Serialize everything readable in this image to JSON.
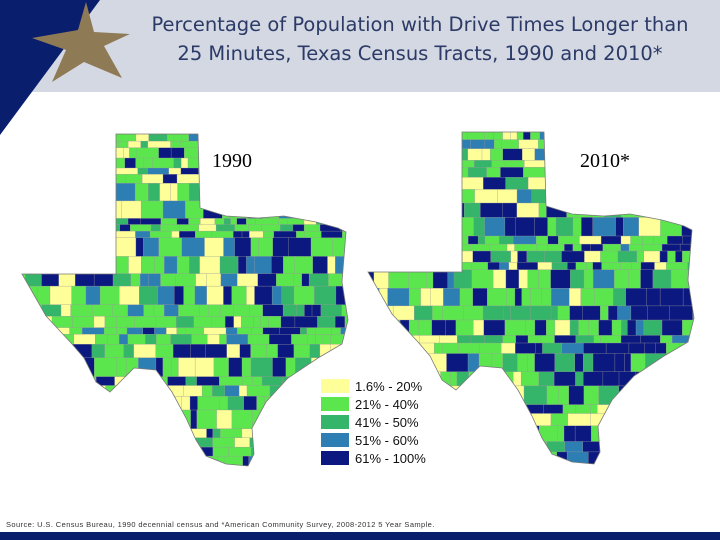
{
  "title": {
    "line1": "Percentage of Population with Drive Times Longer than",
    "line2": "25 Minutes, Texas Census Tracts, 1990 and 2010*"
  },
  "maps": [
    {
      "year_label": "1990"
    },
    {
      "year_label": "2010*"
    }
  ],
  "legend": {
    "items": [
      {
        "label": "1.6% - 20%",
        "color": "#ffff99"
      },
      {
        "label": "21% - 40%",
        "color": "#5ce64e"
      },
      {
        "label": "41% - 50%",
        "color": "#34b56a"
      },
      {
        "label": "51% - 60%",
        "color": "#2c7eb3"
      },
      {
        "label": "61% - 100%",
        "color": "#0b1880"
      }
    ]
  },
  "source": "Source: U.S. Census Bureau, 1990 decennial census and *American Community Survey, 2008-2012 5 Year Sample.",
  "colors": {
    "header_band": "#d4d8e3",
    "corner_navy": "#0a1e6e",
    "star_gold": "#8f7a56",
    "title_text": "#2b3a67",
    "tract_border": "#9a9a9a"
  }
}
